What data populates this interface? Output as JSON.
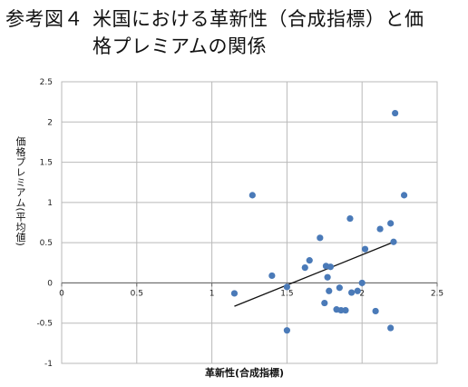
{
  "title": {
    "label": "参考図４",
    "line1": "米国における革新性（合成指標）と価",
    "line2": "格プレミアムの関係"
  },
  "chart_data": {
    "type": "scatter",
    "xlabel": "革新性(合成指標)",
    "ylabel": "価格プレミアム(平均値)",
    "xlim": [
      0,
      2.5
    ],
    "ylim": [
      -1,
      2.5
    ],
    "xticks": [
      "0",
      "0.5",
      "1",
      "1.5",
      "2",
      "2.5"
    ],
    "yticks": [
      "2.5",
      "2",
      "1.5",
      "1",
      "0.5",
      "0",
      "-0.5",
      "-1"
    ],
    "grid": true,
    "points": [
      {
        "x": 1.27,
        "y": 1.09
      },
      {
        "x": 1.15,
        "y": -0.13
      },
      {
        "x": 1.4,
        "y": 0.09
      },
      {
        "x": 1.5,
        "y": -0.05
      },
      {
        "x": 1.5,
        "y": -0.59
      },
      {
        "x": 1.62,
        "y": 0.19
      },
      {
        "x": 1.65,
        "y": 0.28
      },
      {
        "x": 1.72,
        "y": 0.56
      },
      {
        "x": 1.76,
        "y": 0.21
      },
      {
        "x": 1.77,
        "y": 0.07
      },
      {
        "x": 1.78,
        "y": -0.1
      },
      {
        "x": 1.79,
        "y": 0.2
      },
      {
        "x": 1.83,
        "y": -0.33
      },
      {
        "x": 1.85,
        "y": -0.06
      },
      {
        "x": 1.86,
        "y": -0.34
      },
      {
        "x": 1.89,
        "y": -0.34
      },
      {
        "x": 1.92,
        "y": 0.8
      },
      {
        "x": 1.93,
        "y": -0.12
      },
      {
        "x": 1.97,
        "y": -0.1
      },
      {
        "x": 2.0,
        "y": 0.0
      },
      {
        "x": 2.02,
        "y": 0.42
      },
      {
        "x": 2.09,
        "y": -0.35
      },
      {
        "x": 2.12,
        "y": 0.67
      },
      {
        "x": 2.19,
        "y": 0.74
      },
      {
        "x": 2.19,
        "y": -0.56
      },
      {
        "x": 2.21,
        "y": 0.51
      },
      {
        "x": 2.22,
        "y": 2.11
      },
      {
        "x": 2.28,
        "y": 1.09
      },
      {
        "x": 1.75,
        "y": -0.25
      }
    ],
    "trendline": {
      "x": [
        1.15,
        2.2
      ],
      "y": [
        -0.29,
        0.5
      ]
    },
    "colors": {
      "marker": "#4a7ab8",
      "grid": "#b9b9b9",
      "axis": "#6b6b6b",
      "trend": "#111111"
    }
  }
}
